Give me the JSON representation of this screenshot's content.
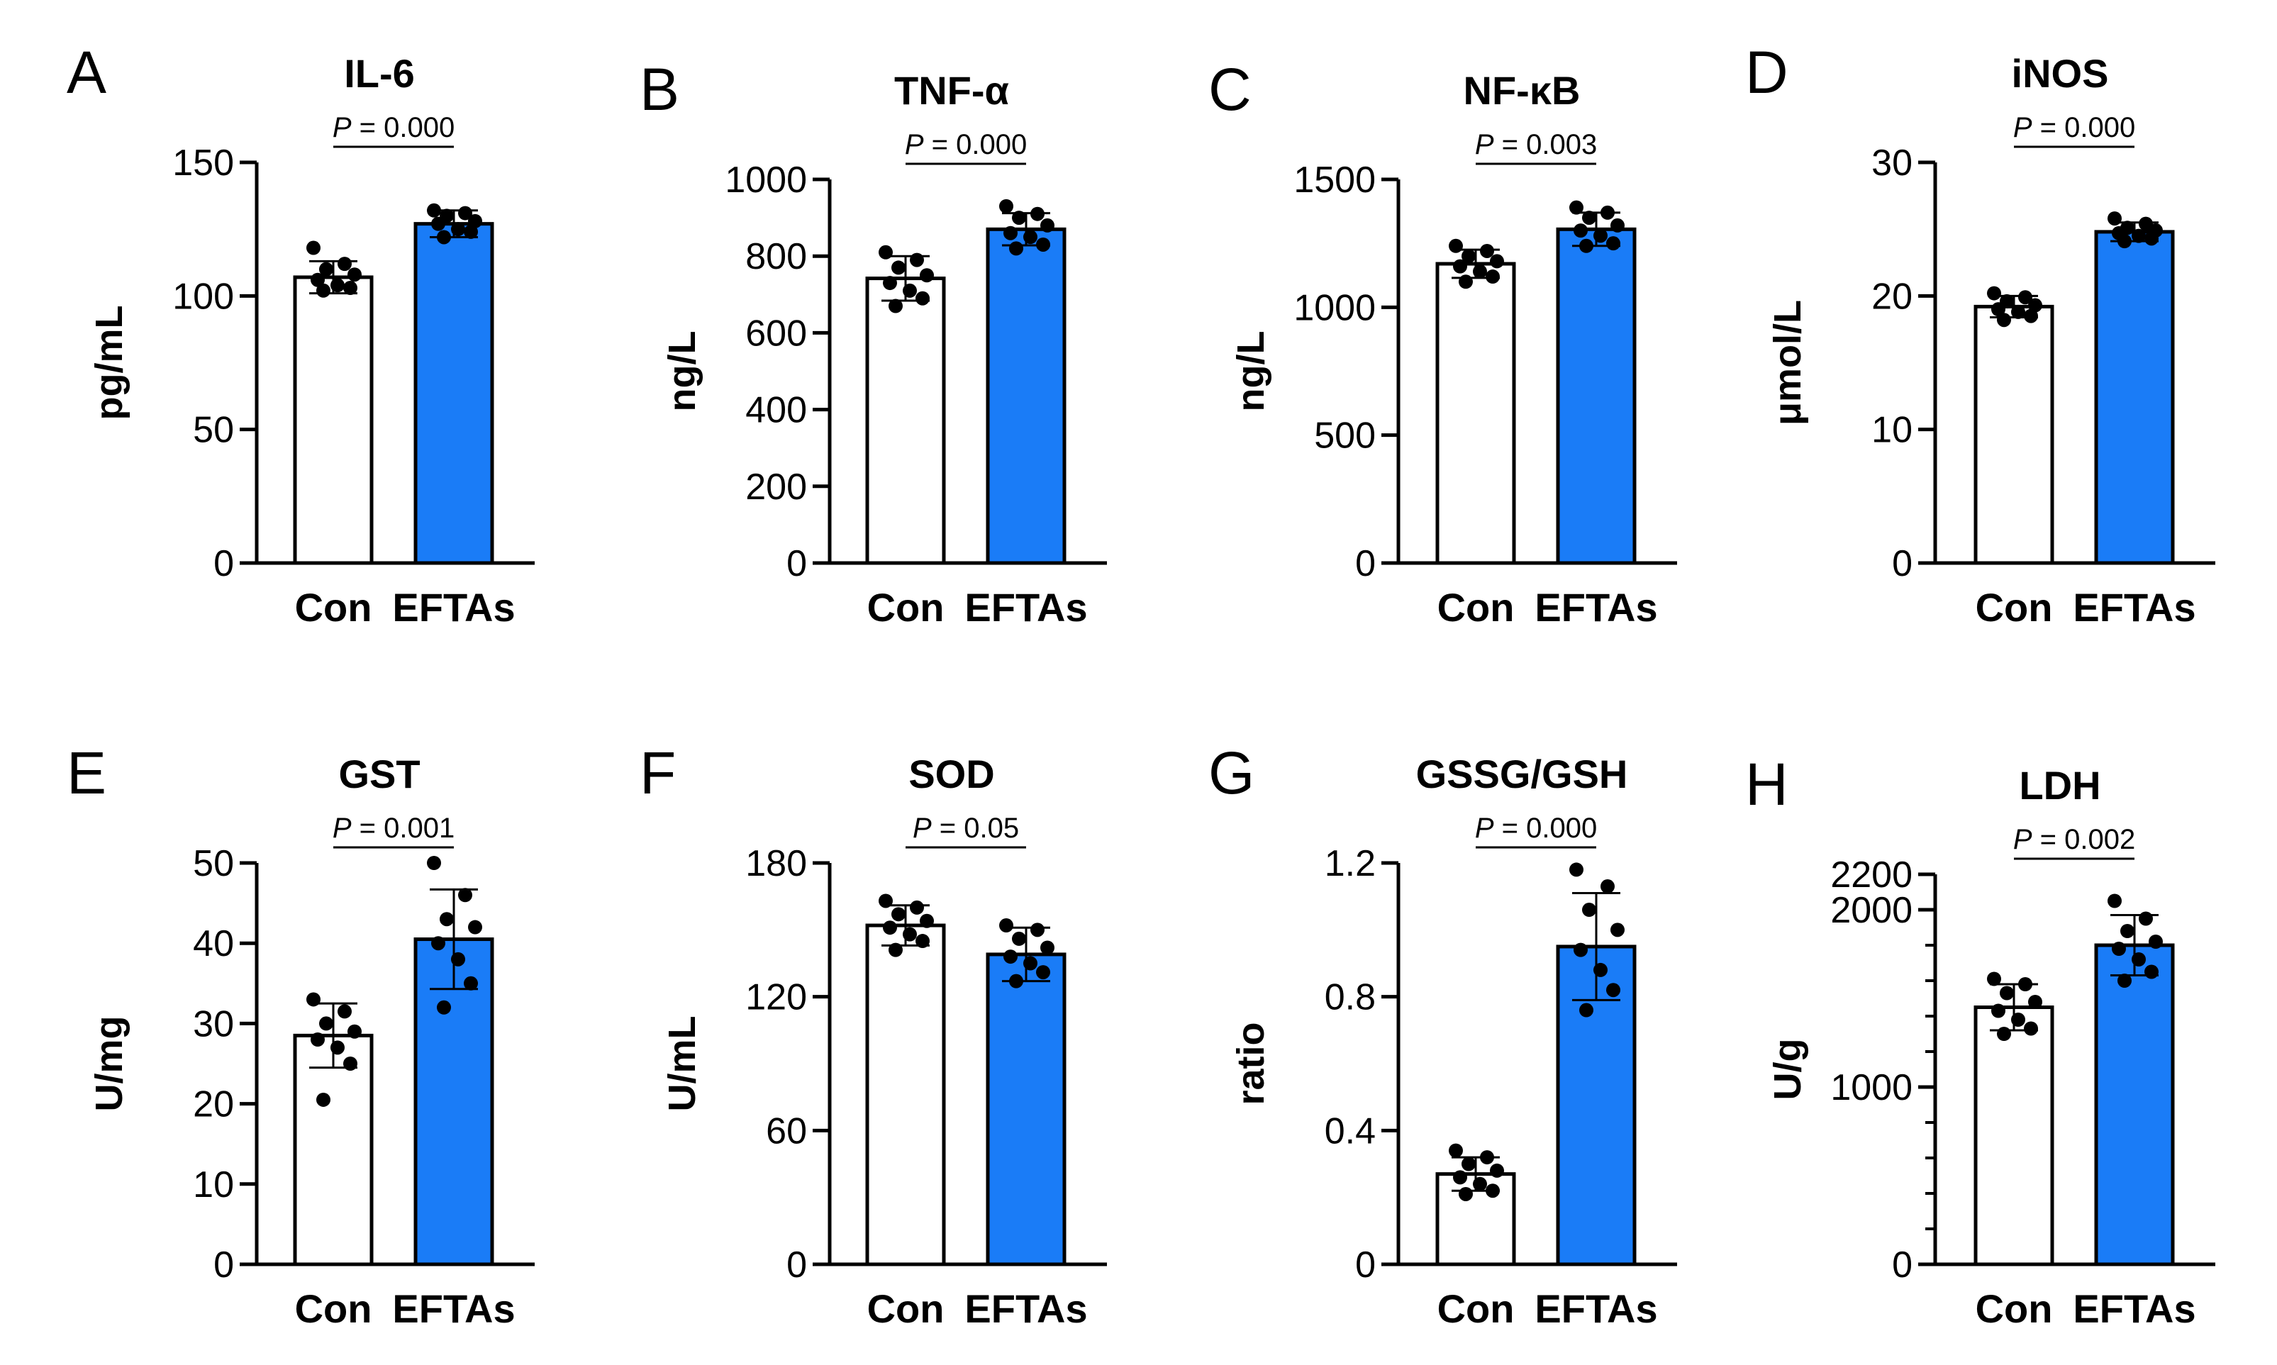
{
  "colors": {
    "con_fill": "#ffffff",
    "eftas_fill": "#1a7cf7",
    "stroke": "#000000",
    "point": "#000000"
  },
  "chart_data": [
    {
      "type": "bar",
      "letter": "A",
      "title": "IL-6",
      "ylabel": "pg/mL",
      "categories": [
        "Con",
        "EFTAs"
      ],
      "ylim": [
        0,
        150
      ],
      "yticks": [
        0,
        50,
        100,
        150
      ],
      "ytick_labels": [
        "0",
        "50",
        "100",
        "150"
      ],
      "p_label": "P = 0.000",
      "series": [
        {
          "values": [
            107,
            127
          ],
          "error": [
            6,
            5
          ]
        }
      ],
      "points": [
        [
          118,
          112,
          110,
          108,
          106,
          104,
          103,
          102
        ],
        [
          132,
          131,
          130,
          128,
          127,
          125,
          124,
          122
        ]
      ]
    },
    {
      "type": "bar",
      "letter": "B",
      "title": "TNF-α",
      "ylabel": "ng/L",
      "categories": [
        "Con",
        "EFTAs"
      ],
      "ylim": [
        0,
        1000
      ],
      "yticks": [
        0,
        200,
        400,
        600,
        800,
        1000
      ],
      "ytick_labels": [
        "0",
        "200",
        "400",
        "600",
        "800",
        "1000"
      ],
      "p_label": "P = 0.000",
      "series": [
        {
          "values": [
            742,
            870
          ],
          "error": [
            58,
            42
          ]
        }
      ],
      "points": [
        [
          810,
          790,
          770,
          750,
          730,
          710,
          690,
          670
        ],
        [
          930,
          910,
          900,
          880,
          860,
          850,
          830,
          820
        ]
      ]
    },
    {
      "type": "bar",
      "letter": "C",
      "title": "NF-κB",
      "ylabel": "ng/L",
      "categories": [
        "Con",
        "EFTAs"
      ],
      "ylim": [
        0,
        1500
      ],
      "yticks": [
        0,
        500,
        1000,
        1500
      ],
      "ytick_labels": [
        "0",
        "500",
        "1000",
        "1500"
      ],
      "p_label": "P = 0.003",
      "series": [
        {
          "values": [
            1170,
            1305
          ],
          "error": [
            55,
            65
          ]
        }
      ],
      "points": [
        [
          1240,
          1220,
          1200,
          1180,
          1160,
          1140,
          1120,
          1100
        ],
        [
          1390,
          1370,
          1350,
          1320,
          1300,
          1280,
          1250,
          1240
        ]
      ]
    },
    {
      "type": "bar",
      "letter": "D",
      "title": "iNOS",
      "ylabel": "μmol/L",
      "categories": [
        "Con",
        "EFTAs"
      ],
      "ylim": [
        0,
        30
      ],
      "yticks": [
        0,
        10,
        20,
        30
      ],
      "ytick_labels": [
        "0",
        "10",
        "20",
        "30"
      ],
      "p_label": "P = 0.000",
      "series": [
        {
          "values": [
            19.2,
            24.8
          ],
          "error": [
            0.8,
            0.7
          ]
        }
      ],
      "points": [
        [
          20.2,
          19.9,
          19.6,
          19.3,
          19.0,
          18.8,
          18.5,
          18.2
        ],
        [
          25.8,
          25.4,
          25.1,
          24.9,
          24.7,
          24.5,
          24.3,
          24.1
        ]
      ]
    },
    {
      "type": "bar",
      "letter": "E",
      "title": "GST",
      "ylabel": "U/mg",
      "categories": [
        "Con",
        "EFTAs"
      ],
      "ylim": [
        0,
        50
      ],
      "yticks": [
        0,
        10,
        20,
        30,
        40,
        50
      ],
      "ytick_labels": [
        "0",
        "10",
        "20",
        "30",
        "40",
        "50"
      ],
      "p_label": "P = 0.001",
      "series": [
        {
          "values": [
            28.5,
            40.5
          ],
          "error": [
            4.0,
            6.2
          ]
        }
      ],
      "points": [
        [
          33,
          31.5,
          30,
          29,
          28,
          27,
          25,
          20.5
        ],
        [
          50,
          46,
          43,
          42,
          40,
          38,
          35,
          32
        ]
      ]
    },
    {
      "type": "bar",
      "letter": "F",
      "title": "SOD",
      "ylabel": "U/mL",
      "categories": [
        "Con",
        "EFTAs"
      ],
      "ylim": [
        0,
        180
      ],
      "yticks": [
        0,
        60,
        120,
        180
      ],
      "ytick_labels": [
        "0",
        "60",
        "120",
        "180"
      ],
      "p_label": "P = 0.05",
      "series": [
        {
          "values": [
            152,
            139
          ],
          "error": [
            9,
            12
          ]
        }
      ],
      "points": [
        [
          163,
          160,
          157,
          154,
          151,
          148,
          145,
          141
        ],
        [
          152,
          150,
          146,
          142,
          138,
          135,
          131,
          127
        ]
      ]
    },
    {
      "type": "bar",
      "letter": "G",
      "title": "GSSG/GSH",
      "ylabel": "ratio",
      "categories": [
        "Con",
        "EFTAs"
      ],
      "ylim": [
        0,
        1.2
      ],
      "yticks": [
        0,
        0.4,
        0.8,
        1.2
      ],
      "ytick_labels": [
        "0",
        "0.4",
        "0.8",
        "1.2"
      ],
      "p_label": "P = 0.000",
      "series": [
        {
          "values": [
            0.27,
            0.95
          ],
          "error": [
            0.05,
            0.16
          ]
        }
      ],
      "points": [
        [
          0.34,
          0.32,
          0.3,
          0.28,
          0.26,
          0.24,
          0.22,
          0.21
        ],
        [
          1.18,
          1.13,
          1.06,
          1.0,
          0.94,
          0.88,
          0.82,
          0.76
        ]
      ]
    },
    {
      "type": "bar",
      "letter": "H",
      "title": "LDH",
      "ylabel": "U/g",
      "categories": [
        "Con",
        "EFTAs"
      ],
      "ylim": [
        0,
        2200
      ],
      "yticks": [
        0,
        1000,
        2000,
        2200
      ],
      "ytick_labels": [
        "0",
        "1000",
        "2000",
        "2200"
      ],
      "minor_ticks": [
        200,
        400,
        600,
        800,
        1200,
        1400,
        1600,
        1800
      ],
      "p_label": "P = 0.002",
      "series": [
        {
          "values": [
            1450,
            1800
          ],
          "error": [
            130,
            170
          ]
        }
      ],
      "points": [
        [
          1610,
          1580,
          1530,
          1480,
          1430,
          1380,
          1330,
          1300
        ],
        [
          2050,
          1950,
          1880,
          1820,
          1780,
          1720,
          1650,
          1600
        ]
      ]
    }
  ]
}
